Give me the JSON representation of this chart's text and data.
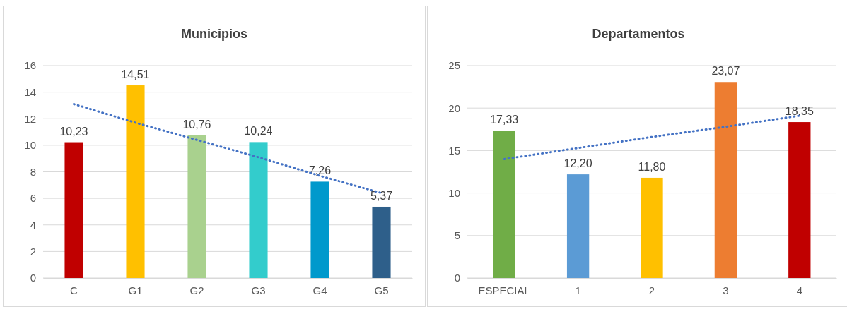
{
  "chart_data": [
    {
      "type": "bar",
      "title": "Municipios",
      "categories": [
        "C",
        "G1",
        "G2",
        "G3",
        "G4",
        "G5"
      ],
      "ylim": [
        0,
        16
      ],
      "yticks": [
        0,
        2,
        4,
        6,
        8,
        10,
        12,
        14,
        16
      ],
      "grid": "y",
      "series": [
        {
          "colors": [
            "#c00000",
            "#ffc000",
            "#a9d18e",
            "#33cccc",
            "#0099cc",
            "#2e5f8a"
          ],
          "values": [
            10.23,
            14.51,
            10.76,
            10.24,
            7.26,
            5.37
          ],
          "value_labels": [
            "10,23",
            "14,51",
            "10,76",
            "10,24",
            "7,26",
            "5,37"
          ]
        },
        {
          "type": "line",
          "color": "#4472c4",
          "line_style": "dotted",
          "values": [
            13.1,
            11.7,
            10.4,
            9.1,
            7.7,
            6.4
          ]
        }
      ]
    },
    {
      "type": "bar",
      "title": "Departamentos",
      "categories": [
        "ESPECIAL",
        "1",
        "2",
        "3",
        "4"
      ],
      "ylim": [
        0,
        25
      ],
      "yticks": [
        0,
        5,
        10,
        15,
        20,
        25
      ],
      "grid": "y",
      "series": [
        {
          "colors": [
            "#70ad47",
            "#5b9bd5",
            "#ffc000",
            "#ed7d31",
            "#c00000"
          ],
          "values": [
            17.33,
            12.2,
            11.8,
            23.07,
            18.35
          ],
          "value_labels": [
            "17,33",
            "12,20",
            "11,80",
            "23,07",
            "18,35"
          ]
        },
        {
          "type": "line",
          "color": "#4472c4",
          "line_style": "dotted",
          "values": [
            14,
            15.3,
            16.6,
            17.8,
            19.1
          ]
        }
      ]
    }
  ]
}
